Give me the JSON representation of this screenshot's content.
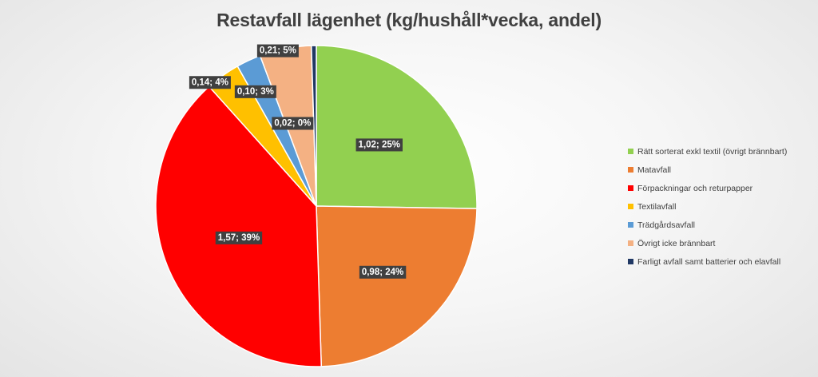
{
  "chart_data": {
    "type": "pie",
    "title": "Restavfall lägenhet (kg/hushåll*vecka, andel)",
    "legend_position": "right",
    "slices": [
      {
        "name": "Rätt sorterat exkl textil (övrigt brännbart)",
        "value": 1.02,
        "percent": 25,
        "label": "1,02; 25%",
        "color": "#92D050"
      },
      {
        "name": "Matavfall",
        "value": 0.98,
        "percent": 24,
        "label": "0,98; 24%",
        "color": "#ED7D31"
      },
      {
        "name": "Förpackningar och returpapper",
        "value": 1.57,
        "percent": 39,
        "label": "1,57; 39%",
        "color": "#FF0000"
      },
      {
        "name": "Textilavfall",
        "value": 0.14,
        "percent": 4,
        "label": "0,14; 4%",
        "color": "#FFC000"
      },
      {
        "name": "Trädgårdsavfall",
        "value": 0.1,
        "percent": 3,
        "label": "0,10; 3%",
        "color": "#5B9BD5"
      },
      {
        "name": "Övrigt icke brännbart",
        "value": 0.21,
        "percent": 5,
        "label": "0,21; 5%",
        "color": "#F4B183"
      },
      {
        "name": "Farligt avfall samt batterier och elavfall",
        "value": 0.02,
        "percent": 0,
        "label": "0,02; 0%",
        "color": "#203864"
      }
    ]
  }
}
